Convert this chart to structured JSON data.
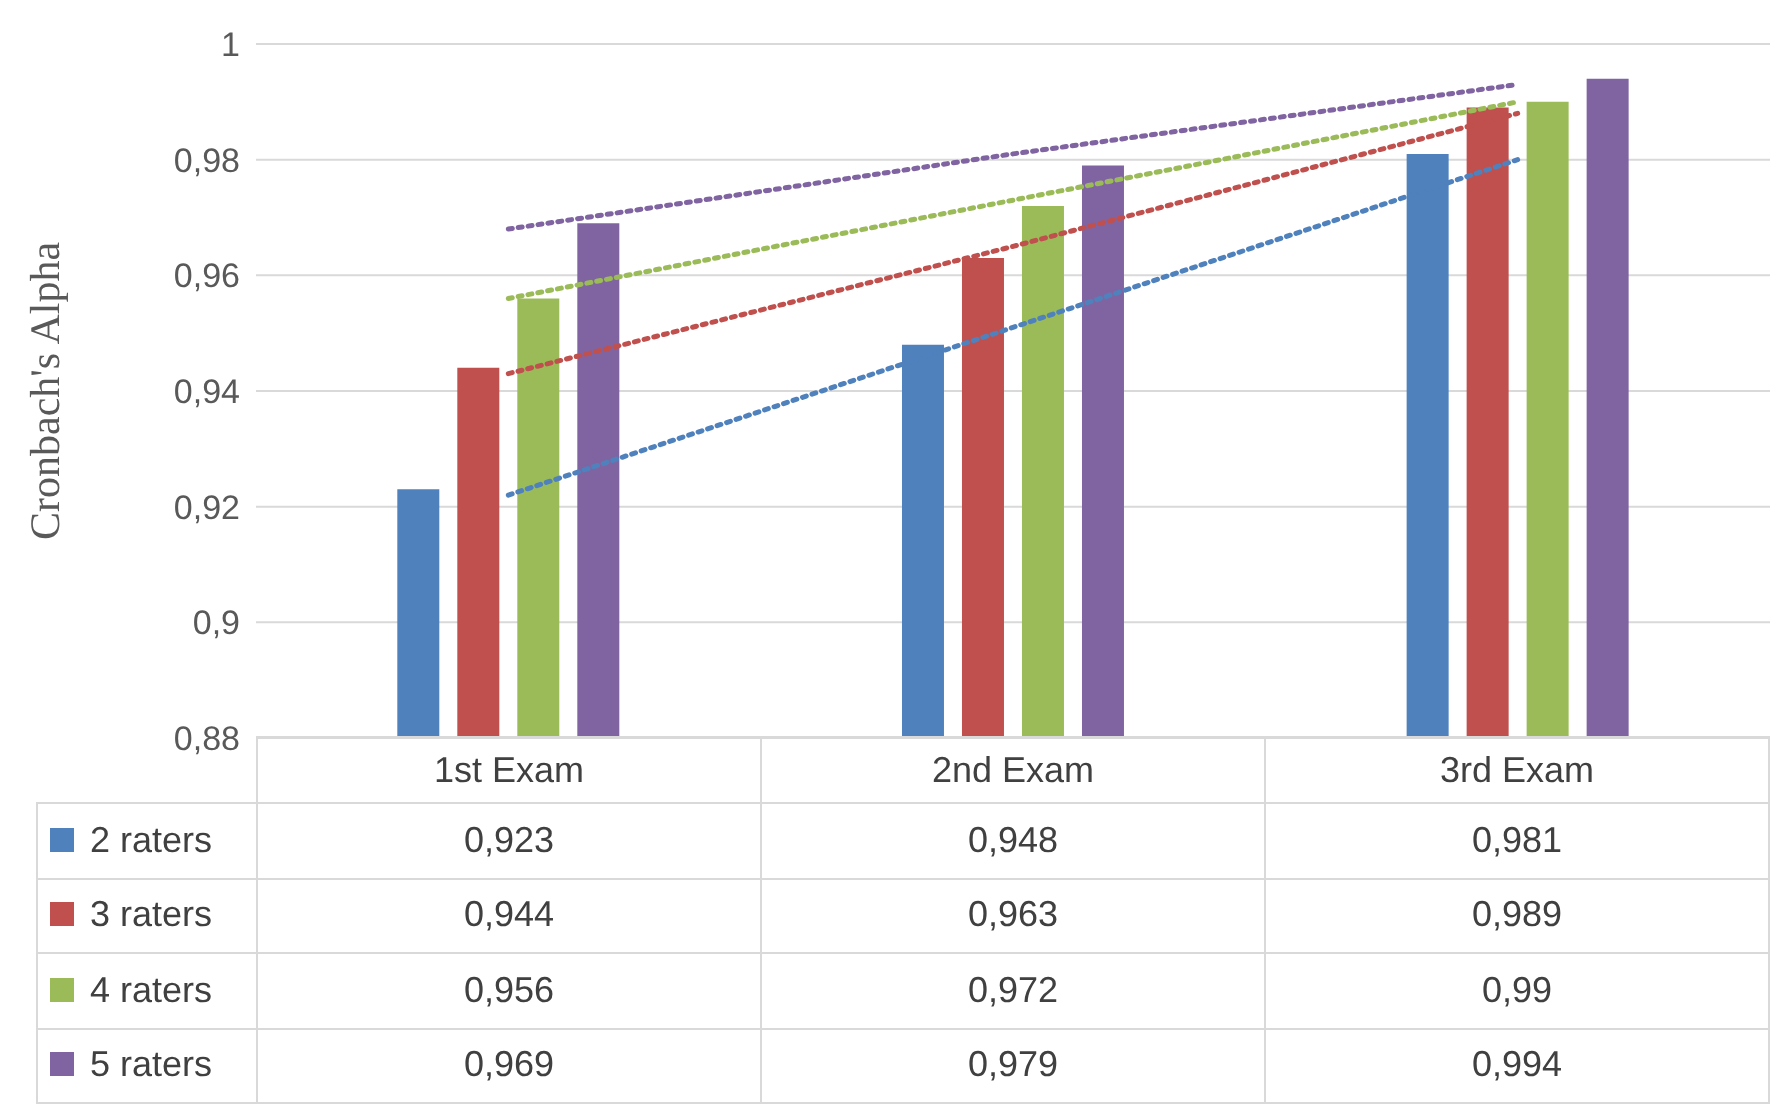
{
  "chart_data": {
    "type": "bar",
    "ylabel": "Cronbach's Alpha",
    "categories": [
      "1st Exam",
      "2nd Exam",
      "3rd Exam"
    ],
    "series": [
      {
        "name": "2 raters",
        "color": "#4f81bd",
        "values": [
          0.923,
          0.948,
          0.981
        ],
        "value_labels": [
          "0,923",
          "0,948",
          "0,981"
        ]
      },
      {
        "name": "3 raters",
        "color": "#c0504d",
        "values": [
          0.944,
          0.963,
          0.989
        ],
        "value_labels": [
          "0,944",
          "0,963",
          "0,989"
        ]
      },
      {
        "name": "4 raters",
        "color": "#9bbb59",
        "values": [
          0.956,
          0.972,
          0.99
        ],
        "value_labels": [
          "0,956",
          "0,972",
          "0,99"
        ]
      },
      {
        "name": "5 raters",
        "color": "#8064a2",
        "values": [
          0.969,
          0.979,
          0.994
        ],
        "value_labels": [
          "0,969",
          "0,979",
          "0,994"
        ]
      },
      {
        "type": "line",
        "color": "#4f81bd",
        "x": [
          "1st Exam",
          "2nd Exam",
          "3rd Exam"
        ],
        "values": [
          0.922,
          0.951,
          0.98
        ],
        "line_style": "dotted"
      },
      {
        "type": "line",
        "color": "#c0504d",
        "x": [
          "1st Exam",
          "2nd Exam",
          "3rd Exam"
        ],
        "values": [
          0.943,
          0.965,
          0.988
        ],
        "line_style": "dotted"
      },
      {
        "type": "line",
        "color": "#9bbb59",
        "x": [
          "1st Exam",
          "2nd Exam",
          "3rd Exam"
        ],
        "values": [
          0.956,
          0.973,
          0.99
        ],
        "line_style": "dotted"
      },
      {
        "type": "line",
        "color": "#8064a2",
        "x": [
          "1st Exam",
          "2nd Exam",
          "3rd Exam"
        ],
        "values": [
          0.968,
          0.981,
          0.993
        ],
        "line_style": "dotted"
      }
    ],
    "ylim": [
      0.88,
      1
    ],
    "yticks": [
      {
        "value": 0.88,
        "label": "0,88"
      },
      {
        "value": 0.9,
        "label": "0,9"
      },
      {
        "value": 0.92,
        "label": "0,92"
      },
      {
        "value": 0.94,
        "label": "0,94"
      },
      {
        "value": 0.96,
        "label": "0,96"
      },
      {
        "value": 0.98,
        "label": "0,98"
      },
      {
        "value": 1,
        "label": "1"
      }
    ],
    "grid": "y",
    "legend": "bottom"
  }
}
